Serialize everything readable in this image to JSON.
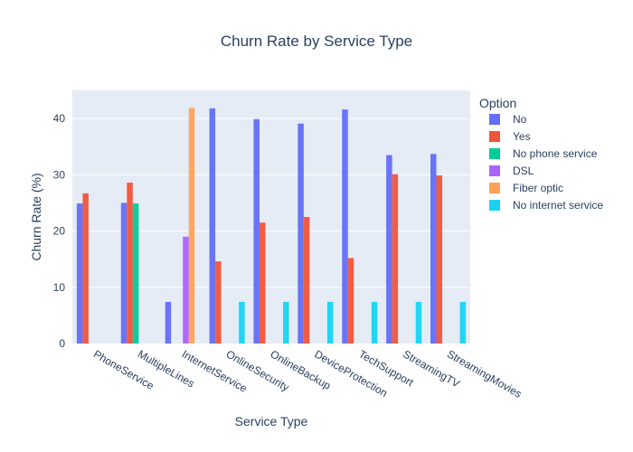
{
  "chart_data": {
    "type": "bar",
    "title": "Churn Rate by Service Type",
    "xlabel": "Service Type",
    "ylabel": "Churn Rate (%)",
    "ylim": [
      0,
      45
    ],
    "yticks": [
      0,
      10,
      20,
      30,
      40
    ],
    "grid": true,
    "legend": {
      "title": "Option",
      "placement": "right"
    },
    "categories": [
      "PhoneService",
      "MultipleLines",
      "InternetService",
      "OnlineSecurity",
      "OnlineBackup",
      "DeviceProtection",
      "TechSupport",
      "StreamingTV",
      "StreamingMovies"
    ],
    "series": [
      {
        "name": "No",
        "color": "#636efa",
        "values": [
          24.9,
          25.0,
          7.4,
          41.8,
          39.9,
          39.1,
          41.6,
          33.5,
          33.7
        ]
      },
      {
        "name": "Yes",
        "color": "#ef553b",
        "values": [
          26.7,
          28.6,
          null,
          14.6,
          21.5,
          22.5,
          15.2,
          30.1,
          29.9
        ]
      },
      {
        "name": "No phone service",
        "color": "#00cc96",
        "values": [
          null,
          24.9,
          null,
          null,
          null,
          null,
          null,
          null,
          null
        ]
      },
      {
        "name": "DSL",
        "color": "#ab63fa",
        "values": [
          null,
          null,
          19.0,
          null,
          null,
          null,
          null,
          null,
          null
        ]
      },
      {
        "name": "Fiber optic",
        "color": "#ffa15a",
        "values": [
          null,
          null,
          41.9,
          null,
          null,
          null,
          null,
          null,
          null
        ]
      },
      {
        "name": "No internet service",
        "color": "#19d3f3",
        "values": [
          null,
          null,
          null,
          7.4,
          7.4,
          7.4,
          7.4,
          7.4,
          7.4
        ]
      }
    ]
  }
}
